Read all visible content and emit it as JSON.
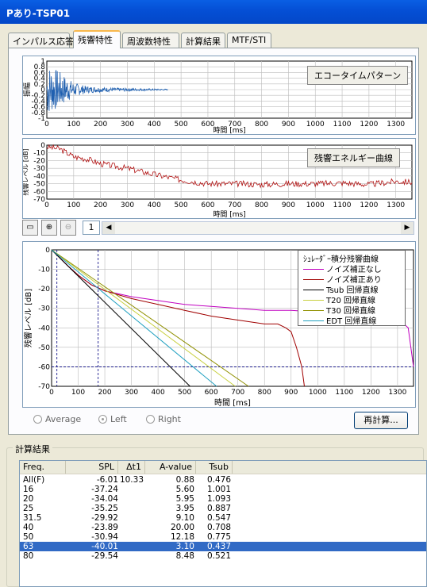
{
  "window": {
    "title": "Pあり-TSP01"
  },
  "tabs": [
    {
      "label": "インパルス応答",
      "active": false
    },
    {
      "label": "残響特性",
      "active": true
    },
    {
      "label": "周波数特性",
      "active": false
    },
    {
      "label": "計算結果",
      "active": false
    },
    {
      "label": "MTF/STI",
      "active": false
    }
  ],
  "echo_chart": {
    "label": "エコータイムパターン",
    "ylabel": "振幅",
    "xlabel": "時間 [ms]",
    "yticks": [
      "1",
      "0.8",
      "0.6",
      "0.4",
      "0.2",
      "0",
      "-0.2",
      "-0.4",
      "-0.6",
      "-0.8",
      "-1"
    ],
    "xticks": [
      "0",
      "100",
      "200",
      "300",
      "400",
      "500",
      "600",
      "700",
      "800",
      "900",
      "1000",
      "1100",
      "1200",
      "1300"
    ]
  },
  "energy_chart": {
    "label": "残響エネルギー曲線",
    "ylabel": "残響レベル [dB]",
    "xlabel": "時間 [ms]",
    "yticks": [
      "0",
      "-10",
      "-20",
      "-30",
      "-40",
      "-50",
      "-60",
      "-70"
    ],
    "xticks": [
      "0",
      "100",
      "200",
      "300",
      "400",
      "500",
      "600",
      "700",
      "800",
      "900",
      "1000",
      "1100",
      "1200",
      "1300"
    ]
  },
  "toolbar": {
    "page": "1",
    "scroll_left": "◀",
    "scroll_right": "▶"
  },
  "decay_chart": {
    "ylabel": "残響レベル [dB]",
    "xlabel": "時間 [ms]",
    "yticks": [
      "0",
      "-10",
      "-20",
      "-30",
      "-40",
      "-50",
      "-60",
      "-70"
    ],
    "xticks": [
      "0",
      "100",
      "200",
      "300",
      "400",
      "500",
      "600",
      "700",
      "800",
      "900",
      "1000",
      "1100",
      "1200",
      "1300"
    ],
    "legend_title": "ｼｭﾚｰﾀﾞｰ積分残響曲線",
    "legend": [
      {
        "name": "ノイズ補正なし",
        "color": "#C000C0"
      },
      {
        "name": "ノイズ補正あり",
        "color": "#A00000"
      },
      {
        "name": "Tsub 回帰直線",
        "color": "#000000"
      },
      {
        "name": "T20 回帰直線",
        "color": "#C8D040"
      },
      {
        "name": "T30 回帰直線",
        "color": "#909000"
      },
      {
        "name": "EDT 回帰直線",
        "color": "#20A0C0"
      }
    ]
  },
  "chart_data": [
    {
      "type": "line",
      "title": "エコータイムパターン",
      "xlabel": "時間 [ms]",
      "ylabel": "振幅",
      "xlim": [
        0,
        1360
      ],
      "ylim": [
        -1,
        1
      ],
      "series": [
        {
          "name": "エコータイムパターン",
          "envelope": [
            [
              0,
              0.95
            ],
            [
              20,
              0.8
            ],
            [
              40,
              0.7
            ],
            [
              60,
              0.55
            ],
            [
              80,
              0.4
            ],
            [
              100,
              0.25
            ],
            [
              150,
              0.12
            ],
            [
              250,
              0.06
            ],
            [
              350,
              0.04
            ],
            [
              450,
              0.02
            ]
          ]
        }
      ]
    },
    {
      "type": "line",
      "title": "残響エネルギー曲線",
      "xlabel": "時間 [ms]",
      "ylabel": "残響レベル [dB]",
      "xlim": [
        0,
        1360
      ],
      "ylim": [
        -70,
        0
      ],
      "series": [
        {
          "name": "残響エネルギー曲線",
          "x": [
            0,
            50,
            100,
            150,
            200,
            300,
            400,
            500,
            600,
            700,
            800,
            900,
            1000,
            1100,
            1200,
            1300,
            1360
          ],
          "y": [
            -2,
            -5,
            -15,
            -18,
            -24,
            -30,
            -38,
            -45,
            -50,
            -50,
            -51,
            -50,
            -50,
            -49,
            -51,
            -47,
            -48
          ]
        }
      ]
    },
    {
      "type": "line",
      "xlabel": "時間 [ms]",
      "ylabel": "残響レベル [dB]",
      "xlim": [
        0,
        1360
      ],
      "ylim": [
        -70,
        0
      ],
      "series": [
        {
          "name": "ノイズ補正なし",
          "x": [
            0,
            30,
            60,
            100,
            150,
            200,
            300,
            400,
            500,
            600,
            700,
            800,
            900,
            1000,
            1100,
            1200,
            1260,
            1300,
            1340,
            1360
          ],
          "y": [
            0,
            -4,
            -8,
            -13,
            -18,
            -21,
            -24,
            -26,
            -28,
            -29,
            -30,
            -31,
            -31,
            -32,
            -32,
            -33,
            -33,
            -35,
            -40,
            -60
          ]
        },
        {
          "name": "ノイズ補正あり",
          "x": [
            0,
            30,
            60,
            100,
            150,
            200,
            300,
            400,
            500,
            600,
            700,
            800,
            850,
            880,
            900,
            920,
            940,
            950
          ],
          "y": [
            0,
            -4,
            -8,
            -13,
            -18,
            -21,
            -25,
            -28,
            -31,
            -34,
            -36,
            -38,
            -38,
            -40,
            -42,
            -50,
            -60,
            -70
          ]
        },
        {
          "name": "Tsub 回帰直線",
          "x": [
            0,
            520
          ],
          "y": [
            0,
            -70
          ]
        },
        {
          "name": "T20 回帰直線",
          "x": [
            0,
            690
          ],
          "y": [
            0,
            -70
          ]
        },
        {
          "name": "T30 回帰直線",
          "x": [
            0,
            740
          ],
          "y": [
            0,
            -70
          ]
        },
        {
          "name": "EDT 回帰直線",
          "x": [
            0,
            620
          ],
          "y": [
            0,
            -70
          ]
        }
      ]
    }
  ],
  "options": {
    "average": "Average",
    "left": "Left",
    "right": "Right",
    "selected": "left"
  },
  "recalc_button": "再計算...",
  "results": {
    "title": "計算結果",
    "columns": [
      "Freq.",
      "SPL",
      "Δt1",
      "A-value",
      "Tsub"
    ],
    "rows": [
      [
        "All(F)",
        "-6.01",
        "10.33",
        "0.88",
        "0.476"
      ],
      [
        "16",
        "-37.24",
        "",
        "5.60",
        "1.001"
      ],
      [
        "20",
        "-34.04",
        "",
        "5.95",
        "1.093"
      ],
      [
        "25",
        "-35.25",
        "",
        "3.95",
        "0.887"
      ],
      [
        "31.5",
        "-29.92",
        "",
        "9.10",
        "0.547"
      ],
      [
        "40",
        "-23.89",
        "",
        "20.00",
        "0.708"
      ],
      [
        "50",
        "-30.94",
        "",
        "12.18",
        "0.775"
      ],
      [
        "63",
        "-40.01",
        "",
        "3.10",
        "0.437"
      ],
      [
        "80",
        "-29.54",
        "",
        "8.48",
        "0.521"
      ]
    ],
    "selected_row": 7
  }
}
